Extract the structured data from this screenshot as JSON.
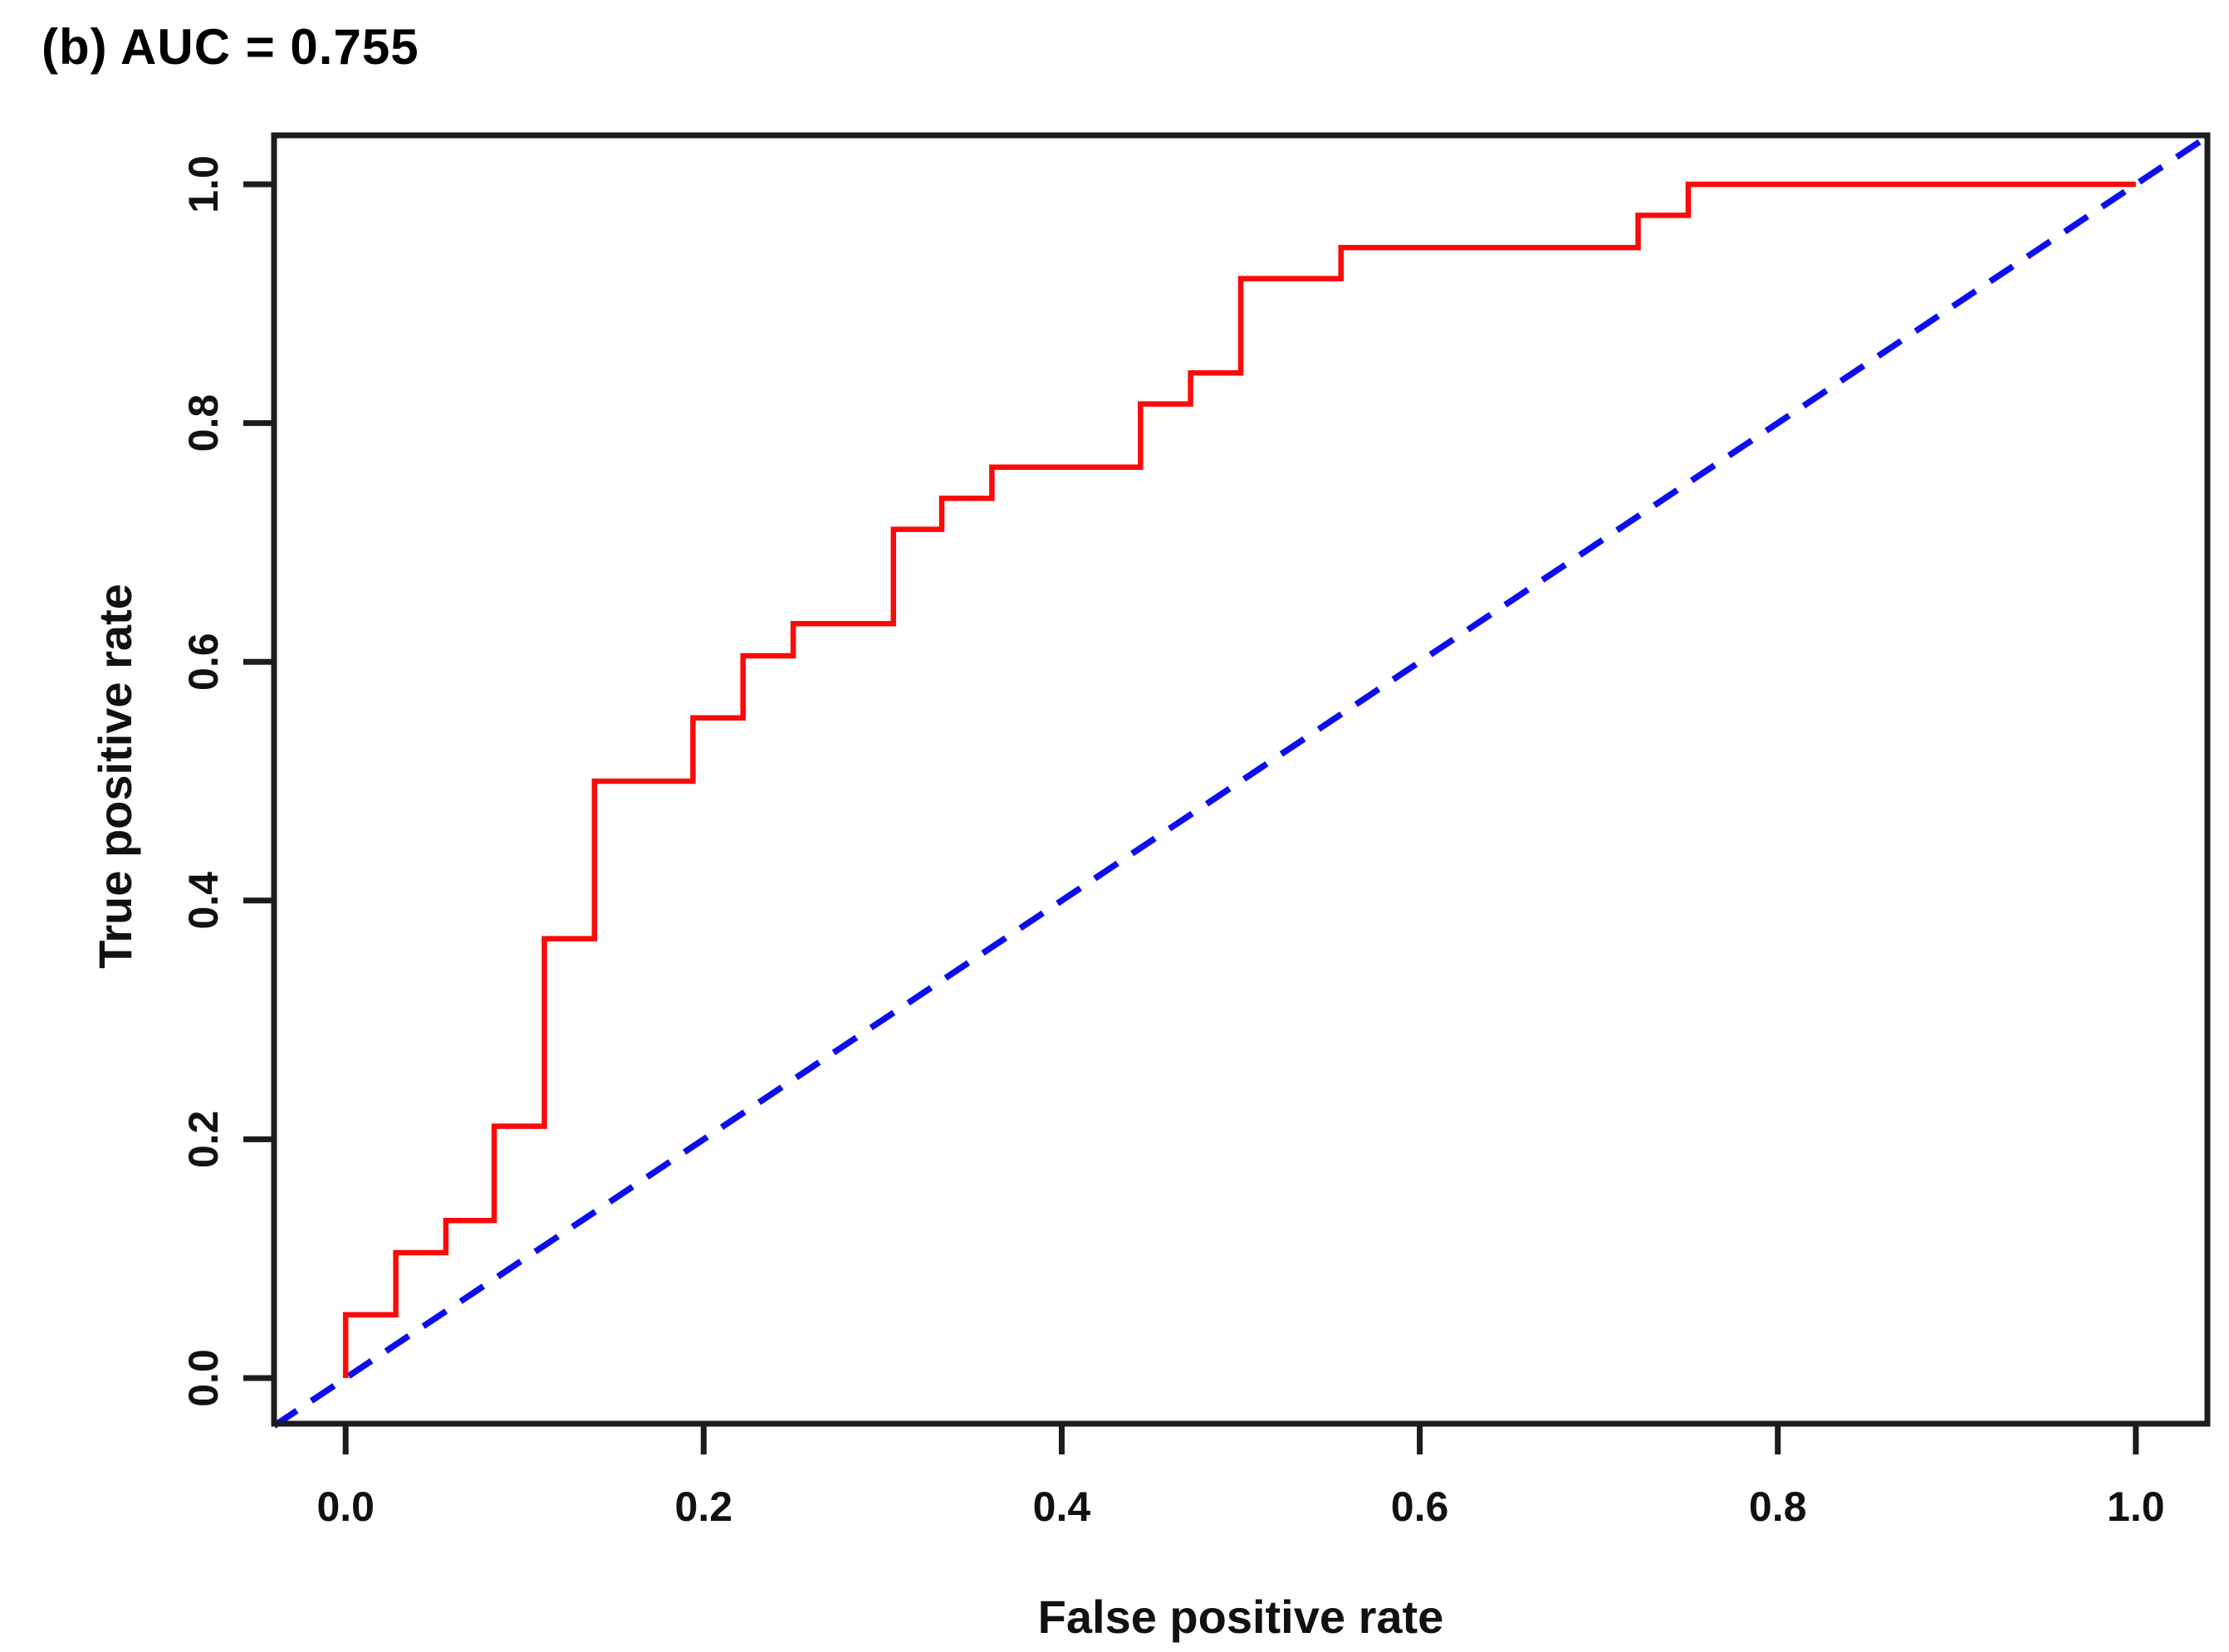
{
  "title": "(b) AUC = 0.755",
  "chart_data": {
    "type": "line",
    "subtype": "roc-step-curve",
    "title": "(b) AUC = 0.755",
    "auc": 0.755,
    "xlabel": "False positive rate",
    "ylabel": "True positive rate",
    "xlim": [
      -0.04,
      1.04
    ],
    "ylim": [
      -0.04,
      1.04
    ],
    "grid": false,
    "legend": null,
    "x_ticks": {
      "values": [
        0.0,
        0.2,
        0.4,
        0.6,
        0.8,
        1.0
      ],
      "labels": [
        "0.0",
        "0.2",
        "0.4",
        "0.6",
        "0.8",
        "1.0"
      ]
    },
    "y_ticks": {
      "values": [
        0.0,
        0.2,
        0.4,
        0.6,
        0.8,
        1.0
      ],
      "labels": [
        "0.0",
        "0.2",
        "0.4",
        "0.6",
        "0.8",
        "1.0"
      ]
    },
    "colors": {
      "roc_curve": "#fa0a0a",
      "diagonal": "#0d0dee",
      "axes": "#1c1c1c",
      "text": "#111111"
    },
    "series": [
      {
        "name": "ROC curve",
        "style": "step",
        "color": "#fa0a0a",
        "linewidth": 6.5,
        "points": [
          [
            0.0,
            0.0
          ],
          [
            0.0,
            0.053
          ],
          [
            0.028,
            0.105
          ],
          [
            0.056,
            0.132
          ],
          [
            0.083,
            0.211
          ],
          [
            0.111,
            0.368
          ],
          [
            0.139,
            0.5
          ],
          [
            0.194,
            0.553
          ],
          [
            0.222,
            0.605
          ],
          [
            0.25,
            0.632
          ],
          [
            0.306,
            0.711
          ],
          [
            0.333,
            0.737
          ],
          [
            0.361,
            0.763
          ],
          [
            0.444,
            0.816
          ],
          [
            0.472,
            0.842
          ],
          [
            0.5,
            0.921
          ],
          [
            0.556,
            0.947
          ],
          [
            0.722,
            0.974
          ],
          [
            0.75,
            1.0
          ],
          [
            1.0,
            1.0
          ]
        ]
      },
      {
        "name": "Chance diagonal",
        "style": "dashed",
        "color": "#0d0dee",
        "linewidth": 7.5,
        "points": [
          [
            -0.04,
            -0.04
          ],
          [
            1.04,
            1.04
          ]
        ]
      }
    ]
  }
}
